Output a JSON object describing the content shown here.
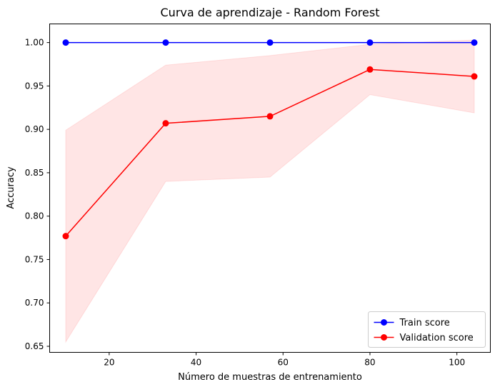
{
  "chart_data": {
    "type": "line",
    "title": "Curva de aprendizaje - Random Forest",
    "xlabel": "Número de muestras de entrenamiento",
    "ylabel": "Accuracy",
    "xlim": [
      6.3,
      107.7
    ],
    "ylim": [
      0.643,
      1.0215
    ],
    "xticks": [
      20,
      40,
      60,
      80,
      100
    ],
    "yticks": [
      0.65,
      0.7,
      0.75,
      0.8,
      0.85,
      0.9,
      0.95,
      1.0
    ],
    "ytick_labels": [
      "0.65",
      "0.70",
      "0.75",
      "0.80",
      "0.85",
      "0.90",
      "0.95",
      "1.00"
    ],
    "grid": false,
    "legend_position": "bottom-right",
    "x": [
      10,
      33,
      57,
      80,
      104
    ],
    "series": [
      {
        "name": "Train score",
        "color": "#0000ff",
        "marker": "circle",
        "values": [
          1.0,
          1.0,
          1.0,
          1.0,
          1.0
        ],
        "band_lower": [
          1.0,
          1.0,
          1.0,
          1.0,
          1.0
        ],
        "band_upper": [
          1.0,
          1.0,
          1.0,
          1.0,
          1.0
        ]
      },
      {
        "name": "Validation score",
        "color": "#ff0000",
        "marker": "circle",
        "values": [
          0.777,
          0.907,
          0.915,
          0.969,
          0.961
        ],
        "band_lower": [
          0.655,
          0.84,
          0.845,
          0.94,
          0.919
        ],
        "band_upper": [
          0.899,
          0.974,
          0.985,
          0.998,
          1.003
        ],
        "band_color": "#ff0000"
      }
    ]
  }
}
